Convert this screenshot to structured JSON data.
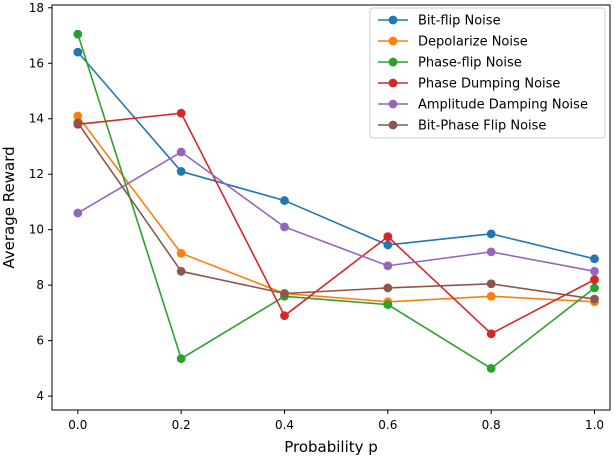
{
  "chart_data": {
    "type": "line",
    "title": "",
    "xlabel": "Probability p",
    "ylabel": "Average Reward",
    "x": [
      0.0,
      0.2,
      0.4,
      0.6,
      0.8,
      1.0
    ],
    "xlim": [
      -0.05,
      1.03
    ],
    "ylim": [
      3.5,
      18.1
    ],
    "x_ticks": [
      0.0,
      0.2,
      0.4,
      0.6,
      0.8,
      1.0
    ],
    "x_tick_labels": [
      "0.0",
      "0.2",
      "0.4",
      "0.6",
      "0.8",
      "1.0"
    ],
    "y_ticks": [
      4,
      6,
      8,
      10,
      12,
      14,
      16,
      18
    ],
    "y_tick_labels": [
      "4",
      "6",
      "8",
      "10",
      "12",
      "14",
      "16",
      "18"
    ],
    "grid": false,
    "legend_position": "top-right",
    "series": [
      {
        "name": "Bit-flip Noise",
        "color": "#1f77b4",
        "values": [
          16.4,
          12.1,
          11.05,
          9.45,
          9.85,
          8.95
        ]
      },
      {
        "name": "Depolarize Noise",
        "color": "#ff7f0e",
        "values": [
          14.1,
          9.15,
          7.7,
          7.4,
          7.6,
          7.4
        ]
      },
      {
        "name": "Phase-flip Noise",
        "color": "#2ca02c",
        "values": [
          17.05,
          5.35,
          7.6,
          7.3,
          5.0,
          7.9
        ]
      },
      {
        "name": "Phase Dumping Noise",
        "color": "#d62728",
        "values": [
          13.8,
          14.2,
          6.9,
          9.75,
          6.25,
          8.2
        ]
      },
      {
        "name": "Amplitude Damping Noise",
        "color": "#9467bd",
        "values": [
          10.6,
          12.8,
          10.1,
          8.7,
          9.2,
          8.5
        ]
      },
      {
        "name": "Bit-Phase Flip Noise",
        "color": "#8c564b",
        "values": [
          13.85,
          8.5,
          7.7,
          7.9,
          8.05,
          7.5
        ]
      }
    ]
  }
}
